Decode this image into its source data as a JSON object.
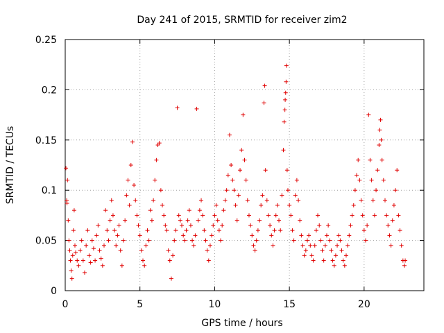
{
  "chart_data": {
    "type": "scatter",
    "title": "Day 241 of 2015, SRMTID for receiver zim2",
    "xlabel": "GPS time / hours",
    "ylabel": "SRMTID / TECUs",
    "xlim": [
      0,
      24
    ],
    "ylim": [
      0,
      0.25
    ],
    "xticks": [
      0,
      5,
      10,
      15,
      20
    ],
    "xtick_labels": [
      "0",
      "5",
      "10",
      "15",
      "20"
    ],
    "yticks": [
      0,
      0.05,
      0.1,
      0.15,
      0.2,
      0.25
    ],
    "ytick_labels": [
      "0",
      "0.05",
      "0.1",
      "0.15",
      "0.2",
      "0.25"
    ],
    "grid": true,
    "marker": "+",
    "marker_color": "#e00000",
    "series": [
      {
        "name": "zim2",
        "points": [
          [
            0.05,
            0.122
          ],
          [
            0.1,
            0.09
          ],
          [
            0.12,
            0.087
          ],
          [
            0.15,
            0.11
          ],
          [
            0.2,
            0.07
          ],
          [
            0.25,
            0.05
          ],
          [
            0.3,
            0.04
          ],
          [
            0.35,
            0.03
          ],
          [
            0.4,
            0.02
          ],
          [
            0.45,
            0.012
          ],
          [
            0.5,
            0.035
          ],
          [
            0.55,
            0.06
          ],
          [
            0.6,
            0.08
          ],
          [
            0.65,
            0.045
          ],
          [
            0.7,
            0.038
          ],
          [
            0.8,
            0.03
          ],
          [
            0.9,
            0.025
          ],
          [
            1.0,
            0.04
          ],
          [
            1.1,
            0.05
          ],
          [
            1.2,
            0.03
          ],
          [
            1.3,
            0.018
          ],
          [
            1.4,
            0.045
          ],
          [
            1.5,
            0.06
          ],
          [
            1.6,
            0.035
          ],
          [
            1.7,
            0.028
          ],
          [
            1.8,
            0.05
          ],
          [
            1.9,
            0.042
          ],
          [
            2.0,
            0.03
          ],
          [
            2.1,
            0.055
          ],
          [
            2.2,
            0.065
          ],
          [
            2.3,
            0.04
          ],
          [
            2.4,
            0.032
          ],
          [
            2.5,
            0.025
          ],
          [
            2.6,
            0.045
          ],
          [
            2.7,
            0.08
          ],
          [
            2.8,
            0.06
          ],
          [
            2.9,
            0.05
          ],
          [
            3.0,
            0.07
          ],
          [
            3.1,
            0.09
          ],
          [
            3.2,
            0.075
          ],
          [
            3.3,
            0.06
          ],
          [
            3.4,
            0.045
          ],
          [
            3.5,
            0.055
          ],
          [
            3.6,
            0.065
          ],
          [
            3.7,
            0.04
          ],
          [
            3.8,
            0.025
          ],
          [
            3.9,
            0.05
          ],
          [
            4.0,
            0.07
          ],
          [
            4.1,
            0.095
          ],
          [
            4.2,
            0.11
          ],
          [
            4.3,
            0.085
          ],
          [
            4.4,
            0.125
          ],
          [
            4.5,
            0.148
          ],
          [
            4.6,
            0.105
          ],
          [
            4.7,
            0.09
          ],
          [
            4.8,
            0.075
          ],
          [
            4.9,
            0.065
          ],
          [
            5.0,
            0.055
          ],
          [
            5.1,
            0.04
          ],
          [
            5.2,
            0.03
          ],
          [
            5.3,
            0.025
          ],
          [
            5.4,
            0.045
          ],
          [
            5.5,
            0.06
          ],
          [
            5.6,
            0.05
          ],
          [
            5.7,
            0.08
          ],
          [
            5.8,
            0.07
          ],
          [
            5.9,
            0.09
          ],
          [
            6.0,
            0.11
          ],
          [
            6.1,
            0.13
          ],
          [
            6.2,
            0.145
          ],
          [
            6.3,
            0.147
          ],
          [
            6.4,
            0.1
          ],
          [
            6.5,
            0.085
          ],
          [
            6.6,
            0.075
          ],
          [
            6.7,
            0.065
          ],
          [
            6.8,
            0.06
          ],
          [
            6.9,
            0.04
          ],
          [
            7.0,
            0.03
          ],
          [
            7.1,
            0.012
          ],
          [
            7.2,
            0.035
          ],
          [
            7.3,
            0.05
          ],
          [
            7.4,
            0.06
          ],
          [
            7.5,
            0.182
          ],
          [
            7.6,
            0.075
          ],
          [
            7.7,
            0.07
          ],
          [
            7.8,
            0.065
          ],
          [
            7.9,
            0.055
          ],
          [
            8.0,
            0.05
          ],
          [
            8.1,
            0.06
          ],
          [
            8.2,
            0.07
          ],
          [
            8.3,
            0.08
          ],
          [
            8.4,
            0.065
          ],
          [
            8.5,
            0.05
          ],
          [
            8.6,
            0.045
          ],
          [
            8.7,
            0.055
          ],
          [
            8.8,
            0.181
          ],
          [
            8.9,
            0.07
          ],
          [
            9.0,
            0.08
          ],
          [
            9.1,
            0.09
          ],
          [
            9.2,
            0.075
          ],
          [
            9.3,
            0.06
          ],
          [
            9.4,
            0.05
          ],
          [
            9.5,
            0.04
          ],
          [
            9.6,
            0.03
          ],
          [
            9.7,
            0.045
          ],
          [
            9.8,
            0.055
          ],
          [
            9.9,
            0.065
          ],
          [
            10.0,
            0.075
          ],
          [
            10.1,
            0.085
          ],
          [
            10.2,
            0.07
          ],
          [
            10.3,
            0.06
          ],
          [
            10.4,
            0.05
          ],
          [
            10.5,
            0.065
          ],
          [
            10.6,
            0.08
          ],
          [
            10.7,
            0.09
          ],
          [
            10.8,
            0.1
          ],
          [
            10.9,
            0.115
          ],
          [
            11.0,
            0.155
          ],
          [
            11.1,
            0.125
          ],
          [
            11.2,
            0.11
          ],
          [
            11.3,
            0.1
          ],
          [
            11.4,
            0.085
          ],
          [
            11.5,
            0.07
          ],
          [
            11.6,
            0.095
          ],
          [
            11.7,
            0.12
          ],
          [
            11.8,
            0.14
          ],
          [
            11.9,
            0.175
          ],
          [
            12.0,
            0.13
          ],
          [
            12.1,
            0.11
          ],
          [
            12.2,
            0.09
          ],
          [
            12.3,
            0.075
          ],
          [
            12.4,
            0.065
          ],
          [
            12.5,
            0.055
          ],
          [
            12.6,
            0.045
          ],
          [
            12.7,
            0.04
          ],
          [
            12.8,
            0.05
          ],
          [
            12.9,
            0.06
          ],
          [
            13.0,
            0.07
          ],
          [
            13.1,
            0.085
          ],
          [
            13.2,
            0.095
          ],
          [
            13.3,
            0.187
          ],
          [
            13.35,
            0.204
          ],
          [
            13.4,
            0.12
          ],
          [
            13.5,
            0.09
          ],
          [
            13.6,
            0.075
          ],
          [
            13.7,
            0.065
          ],
          [
            13.8,
            0.055
          ],
          [
            13.9,
            0.045
          ],
          [
            14.0,
            0.06
          ],
          [
            14.1,
            0.075
          ],
          [
            14.2,
            0.085
          ],
          [
            14.3,
            0.07
          ],
          [
            14.4,
            0.06
          ],
          [
            14.5,
            0.095
          ],
          [
            14.6,
            0.14
          ],
          [
            14.65,
            0.168
          ],
          [
            14.7,
            0.18
          ],
          [
            14.72,
            0.19
          ],
          [
            14.75,
            0.197
          ],
          [
            14.78,
            0.208
          ],
          [
            14.8,
            0.224
          ],
          [
            14.85,
            0.12
          ],
          [
            14.9,
            0.1
          ],
          [
            15.0,
            0.085
          ],
          [
            15.1,
            0.075
          ],
          [
            15.2,
            0.06
          ],
          [
            15.3,
            0.05
          ],
          [
            15.4,
            0.095
          ],
          [
            15.5,
            0.11
          ],
          [
            15.6,
            0.09
          ],
          [
            15.7,
            0.07
          ],
          [
            15.8,
            0.055
          ],
          [
            15.9,
            0.045
          ],
          [
            16.0,
            0.035
          ],
          [
            16.1,
            0.04
          ],
          [
            16.2,
            0.05
          ],
          [
            16.3,
            0.055
          ],
          [
            16.4,
            0.045
          ],
          [
            16.5,
            0.035
          ],
          [
            16.6,
            0.03
          ],
          [
            16.7,
            0.045
          ],
          [
            16.8,
            0.06
          ],
          [
            16.9,
            0.075
          ],
          [
            17.0,
            0.065
          ],
          [
            17.1,
            0.05
          ],
          [
            17.2,
            0.04
          ],
          [
            17.3,
            0.03
          ],
          [
            17.4,
            0.045
          ],
          [
            17.5,
            0.055
          ],
          [
            17.6,
            0.065
          ],
          [
            17.7,
            0.05
          ],
          [
            17.8,
            0.04
          ],
          [
            17.9,
            0.03
          ],
          [
            18.0,
            0.025
          ],
          [
            18.1,
            0.035
          ],
          [
            18.2,
            0.045
          ],
          [
            18.3,
            0.055
          ],
          [
            18.4,
            0.05
          ],
          [
            18.5,
            0.04
          ],
          [
            18.6,
            0.03
          ],
          [
            18.7,
            0.025
          ],
          [
            18.8,
            0.035
          ],
          [
            18.9,
            0.045
          ],
          [
            19.0,
            0.055
          ],
          [
            19.1,
            0.065
          ],
          [
            19.2,
            0.075
          ],
          [
            19.3,
            0.085
          ],
          [
            19.4,
            0.1
          ],
          [
            19.5,
            0.115
          ],
          [
            19.6,
            0.13
          ],
          [
            19.7,
            0.11
          ],
          [
            19.8,
            0.09
          ],
          [
            19.9,
            0.075
          ],
          [
            20.0,
            0.06
          ],
          [
            20.1,
            0.05
          ],
          [
            20.2,
            0.065
          ],
          [
            20.3,
            0.175
          ],
          [
            20.4,
            0.13
          ],
          [
            20.5,
            0.11
          ],
          [
            20.6,
            0.09
          ],
          [
            20.7,
            0.075
          ],
          [
            20.8,
            0.1
          ],
          [
            20.9,
            0.12
          ],
          [
            21.0,
            0.145
          ],
          [
            21.05,
            0.16
          ],
          [
            21.1,
            0.17
          ],
          [
            21.15,
            0.15
          ],
          [
            21.2,
            0.13
          ],
          [
            21.3,
            0.11
          ],
          [
            21.4,
            0.09
          ],
          [
            21.5,
            0.075
          ],
          [
            21.6,
            0.065
          ],
          [
            21.7,
            0.055
          ],
          [
            21.8,
            0.045
          ],
          [
            21.9,
            0.07
          ],
          [
            22.0,
            0.085
          ],
          [
            22.1,
            0.1
          ],
          [
            22.2,
            0.12
          ],
          [
            22.3,
            0.075
          ],
          [
            22.4,
            0.06
          ],
          [
            22.5,
            0.045
          ],
          [
            22.6,
            0.03
          ],
          [
            22.7,
            0.025
          ],
          [
            22.75,
            0.03
          ]
        ]
      }
    ]
  }
}
